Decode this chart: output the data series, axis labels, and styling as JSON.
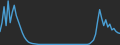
{
  "values": [
    55,
    85,
    140,
    75,
    160,
    85,
    120,
    145,
    110,
    90,
    70,
    50,
    35,
    25,
    18,
    15,
    13,
    12,
    11,
    10,
    10,
    10,
    10,
    10,
    10,
    10,
    10,
    10,
    10,
    10,
    10,
    10,
    10,
    10,
    10,
    10,
    10,
    10,
    10,
    10,
    10,
    10,
    10,
    10,
    12,
    18,
    25,
    45,
    90,
    130,
    100,
    75,
    95,
    70,
    80,
    60,
    65,
    55,
    50,
    48
  ],
  "line_color": "#4a9fd4",
  "background_color": "#2a2a2a",
  "linewidth": 1.0
}
